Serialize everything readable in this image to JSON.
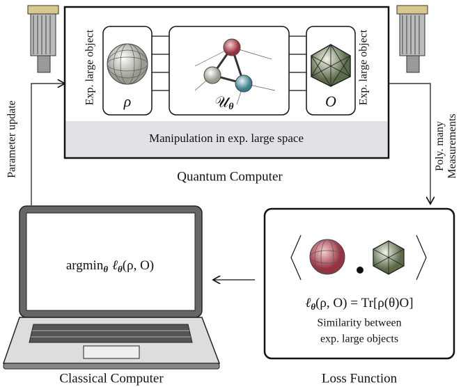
{
  "quantum": {
    "left_label": "Exp. large object",
    "right_label": "Exp. large object",
    "rho": "ρ",
    "unitary": "𝒰",
    "unitary_sub": "θ",
    "observable": "O",
    "band": "Manipulation in exp. large space",
    "caption": "Quantum Computer"
  },
  "arrows": {
    "parameter_update": "Parameter update",
    "measurements": [
      "Poly. many",
      "Measurements"
    ]
  },
  "classical": {
    "formula": [
      "argmin",
      "θ",
      "ℓ",
      "θ",
      "(ρ, O)"
    ],
    "caption": "Classical Computer"
  },
  "loss": {
    "formula": [
      "ℓ",
      "θ",
      "(ρ, O) = Tr[ρ(θ)O]"
    ],
    "description": [
      "Similarity between",
      "exp. large objects"
    ],
    "caption": "Loss Function"
  }
}
